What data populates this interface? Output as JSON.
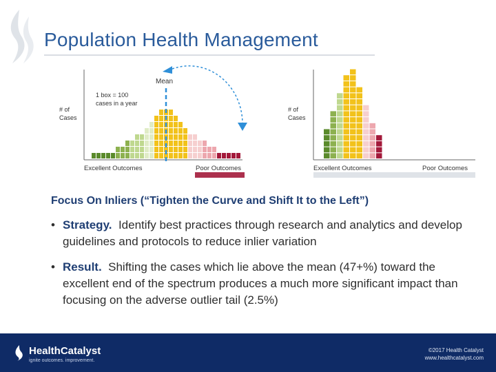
{
  "header": {
    "title": "Population Health Management"
  },
  "chart": {
    "mean_label": "Mean",
    "box_note_line1": "1 box = 100",
    "box_note_line2": "cases in a year",
    "y_label_line1": "# of",
    "y_label_line2": "Cases",
    "left_x_start": "Excellent Outcomes",
    "left_x_end": "Poor Outcomes",
    "right_x_start": "Excellent Outcomes",
    "right_x_end": "Poor Outcomes"
  },
  "chart_data": [
    {
      "type": "bar",
      "title": "",
      "xlabel": "",
      "ylabel": "# of Cases",
      "note": "1 box = 100 cases in a year",
      "x_start_label": "Excellent Outcomes",
      "x_end_label": "Poor Outcomes",
      "values": [
        1,
        1,
        1,
        1,
        1,
        2,
        2,
        3,
        3,
        4,
        4,
        5,
        6,
        7,
        8,
        8,
        8,
        7,
        6,
        5,
        4,
        4,
        3,
        3,
        2,
        2,
        1,
        1,
        1,
        1,
        1
      ],
      "color_groups": [
        "dark-green",
        "dark-green",
        "dark-green",
        "dark-green",
        "dark-green",
        "mid-green",
        "mid-green",
        "mid-green",
        "light-green",
        "light-green",
        "light-green",
        "pale-green",
        "pale-green",
        "yellow",
        "yellow",
        "yellow",
        "yellow",
        "yellow",
        "yellow",
        "yellow",
        "pale-pink",
        "pale-pink",
        "pale-pink",
        "pink",
        "pink",
        "pink",
        "dark-red",
        "dark-red",
        "dark-red",
        "dark-red",
        "dark-red"
      ],
      "mean_label": "Mean"
    },
    {
      "type": "bar",
      "title": "",
      "xlabel": "",
      "ylabel": "# of Cases",
      "x_start_label": "Excellent Outcomes",
      "x_end_label": "Poor Outcomes",
      "values": [
        5,
        8,
        11,
        14,
        15,
        12,
        9,
        6,
        4
      ],
      "color_groups": [
        "dark-green",
        "mid-green",
        "light-green",
        "yellow",
        "yellow",
        "yellow",
        "pale-pink",
        "pink",
        "dark-red"
      ]
    }
  ],
  "palette": {
    "dark-green": "#5a8a2b",
    "mid-green": "#8db14f",
    "light-green": "#bfd88f",
    "pale-green": "#e0ecc6",
    "yellow": "#f2c21b",
    "pale-pink": "#f6cfcf",
    "pink": "#eda7ae",
    "dark-red": "#a3193a"
  },
  "body": {
    "subhead": "Focus On Inliers (“Tighten the Curve and Shift It to the Left”)",
    "bullets": [
      {
        "marker": "•",
        "keyword": "Strategy.",
        "text": "Identify best practices through research and analytics and develop guidelines and protocols to reduce inlier variation"
      },
      {
        "marker": "•",
        "keyword": "Result.",
        "text": "Shifting the cases which lie above the mean (47+%) toward the excellent end of the spectrum produces a much more significant impact than focusing on the adverse outlier tail (2.5%)"
      }
    ]
  },
  "footer": {
    "brand": "HealthCatalyst",
    "tagline": "ignite outcomes. improvement.",
    "copyright": "©2017 Health Catalyst",
    "website": "www.healthcatalyst.com",
    "brand_color": "#0f2b66"
  }
}
